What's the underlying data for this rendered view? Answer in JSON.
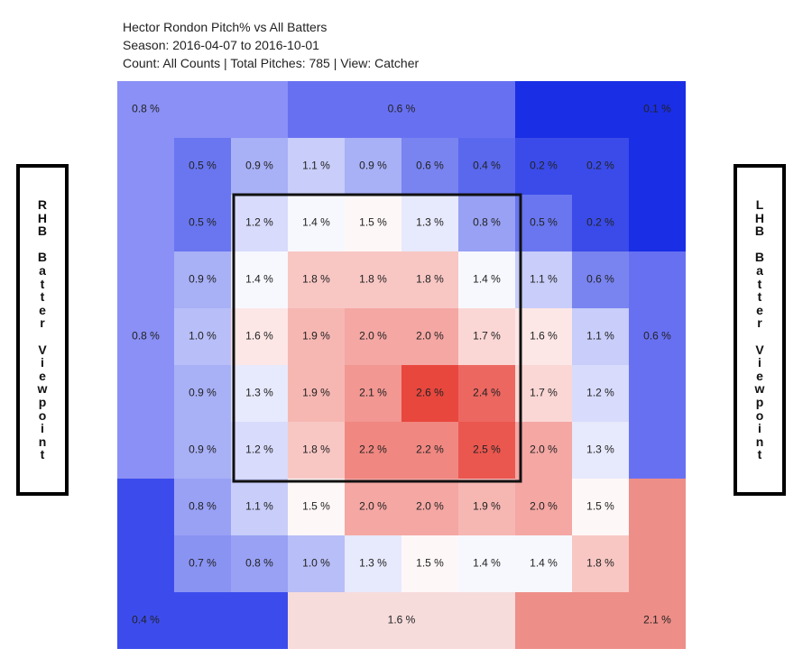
{
  "chart_data": {
    "type": "heatmap",
    "title": "Hector Rondon Pitch% vs All Batters",
    "subtitle_season": "Season: 2016-04-07 to 2016-10-01",
    "subtitle_count": "Count: All Counts | Total Pitches: 785 | View: Catcher",
    "left_label": "RHB Batter Viewpoint",
    "right_label": "LHB Batter Viewpoint",
    "inner_grid": [
      [
        0.5,
        0.9,
        1.1,
        0.9,
        0.6,
        0.4,
        0.2,
        0.2
      ],
      [
        0.5,
        1.2,
        1.4,
        1.5,
        1.3,
        0.8,
        0.5,
        0.2
      ],
      [
        0.9,
        1.4,
        1.8,
        1.8,
        1.8,
        1.4,
        1.1,
        0.6
      ],
      [
        1.0,
        1.6,
        1.9,
        2.0,
        2.0,
        1.7,
        1.6,
        1.1
      ],
      [
        0.9,
        1.3,
        1.9,
        2.1,
        2.6,
        2.4,
        1.7,
        1.2
      ],
      [
        0.9,
        1.2,
        1.8,
        2.2,
        2.2,
        2.5,
        2.0,
        1.3
      ],
      [
        0.8,
        1.1,
        1.5,
        2.0,
        2.0,
        1.9,
        2.0,
        1.5
      ],
      [
        0.7,
        0.8,
        1.0,
        1.3,
        1.5,
        1.4,
        1.4,
        1.8
      ]
    ],
    "outer_zones": [
      {
        "name": "top-left",
        "value": 0.8,
        "color": "#8a90f5"
      },
      {
        "name": "top-center",
        "value": 0.6,
        "color": "#6870f2"
      },
      {
        "name": "top-right",
        "value": 0.1,
        "color": "#1a2ee6"
      },
      {
        "name": "left",
        "value": 0.8,
        "color": "#8a90f5"
      },
      {
        "name": "right",
        "value": 0.6,
        "color": "#6870f2"
      },
      {
        "name": "bottom-left",
        "value": 0.4,
        "color": "#3c4cec"
      },
      {
        "name": "bottom-center",
        "value": 1.6,
        "color": "#f7dcdc"
      },
      {
        "name": "bottom-right",
        "value": 2.1,
        "color": "#ee8e88"
      }
    ],
    "value_suffix": " %",
    "color_scale": {
      "low": "#1a2ee6",
      "mid": "#ffffff",
      "high": "#e8473e",
      "mid_value": 1.45,
      "high_value": 2.6
    },
    "strike_zone": "inner 5x5 cells (rows 2-6, cols 2-6 of inner grid)"
  }
}
